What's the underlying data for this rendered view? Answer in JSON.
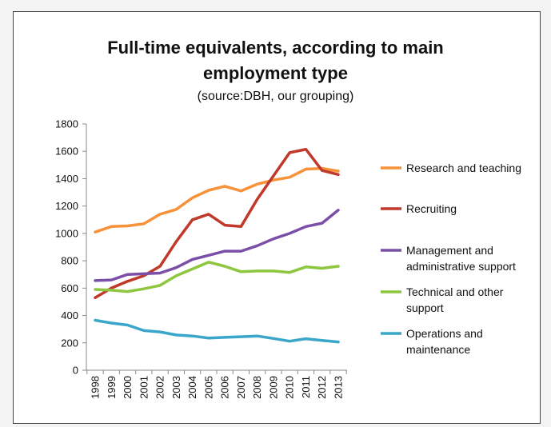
{
  "chart_data": {
    "type": "line",
    "title_line1": "Full-time equivalents, according to main",
    "title_line2": "employment type",
    "subtitle": "(source:DBH, our grouping)",
    "xlabel": "",
    "ylabel": "",
    "ylim": [
      0,
      1800
    ],
    "yticks": [
      0,
      200,
      400,
      600,
      800,
      1000,
      1200,
      1400,
      1600,
      1800
    ],
    "x": [
      "1998",
      "1999",
      "2000",
      "2001",
      "2002",
      "2003",
      "2004",
      "2005",
      "2006",
      "2007",
      "2008",
      "2009",
      "2010",
      "2011",
      "2012",
      "2013"
    ],
    "grid": false,
    "legend_position": "right",
    "series": [
      {
        "name": "Research and teaching",
        "legend_lines": [
          "Research and teaching"
        ],
        "color": "#f7923a",
        "values": [
          1010,
          1050,
          1055,
          1070,
          1140,
          1175,
          1260,
          1315,
          1345,
          1310,
          1360,
          1390,
          1410,
          1470,
          1475,
          1455
        ]
      },
      {
        "name": "Recruiting",
        "legend_lines": [
          "Recruiting"
        ],
        "color": "#c0392b",
        "values": [
          530,
          600,
          650,
          690,
          760,
          940,
          1100,
          1140,
          1060,
          1050,
          1250,
          1420,
          1590,
          1615,
          1460,
          1430
        ]
      },
      {
        "name": "Management and administrative support",
        "legend_lines": [
          "Management and",
          "administrative support"
        ],
        "color": "#7b4fa8",
        "values": [
          655,
          660,
          700,
          705,
          710,
          750,
          810,
          840,
          870,
          870,
          910,
          960,
          1000,
          1050,
          1075,
          1170
        ]
      },
      {
        "name": "Technical and other support",
        "legend_lines": [
          "Technical and other",
          "support"
        ],
        "color": "#8dc63f",
        "values": [
          590,
          585,
          575,
          595,
          620,
          690,
          740,
          790,
          760,
          720,
          725,
          725,
          715,
          755,
          745,
          760
        ]
      },
      {
        "name": "Operations and maintenance",
        "legend_lines": [
          "Operations and",
          "maintenance"
        ],
        "color": "#3aa6c9",
        "values": [
          365,
          345,
          330,
          290,
          280,
          258,
          250,
          235,
          240,
          245,
          250,
          232,
          212,
          230,
          218,
          207
        ]
      }
    ]
  }
}
